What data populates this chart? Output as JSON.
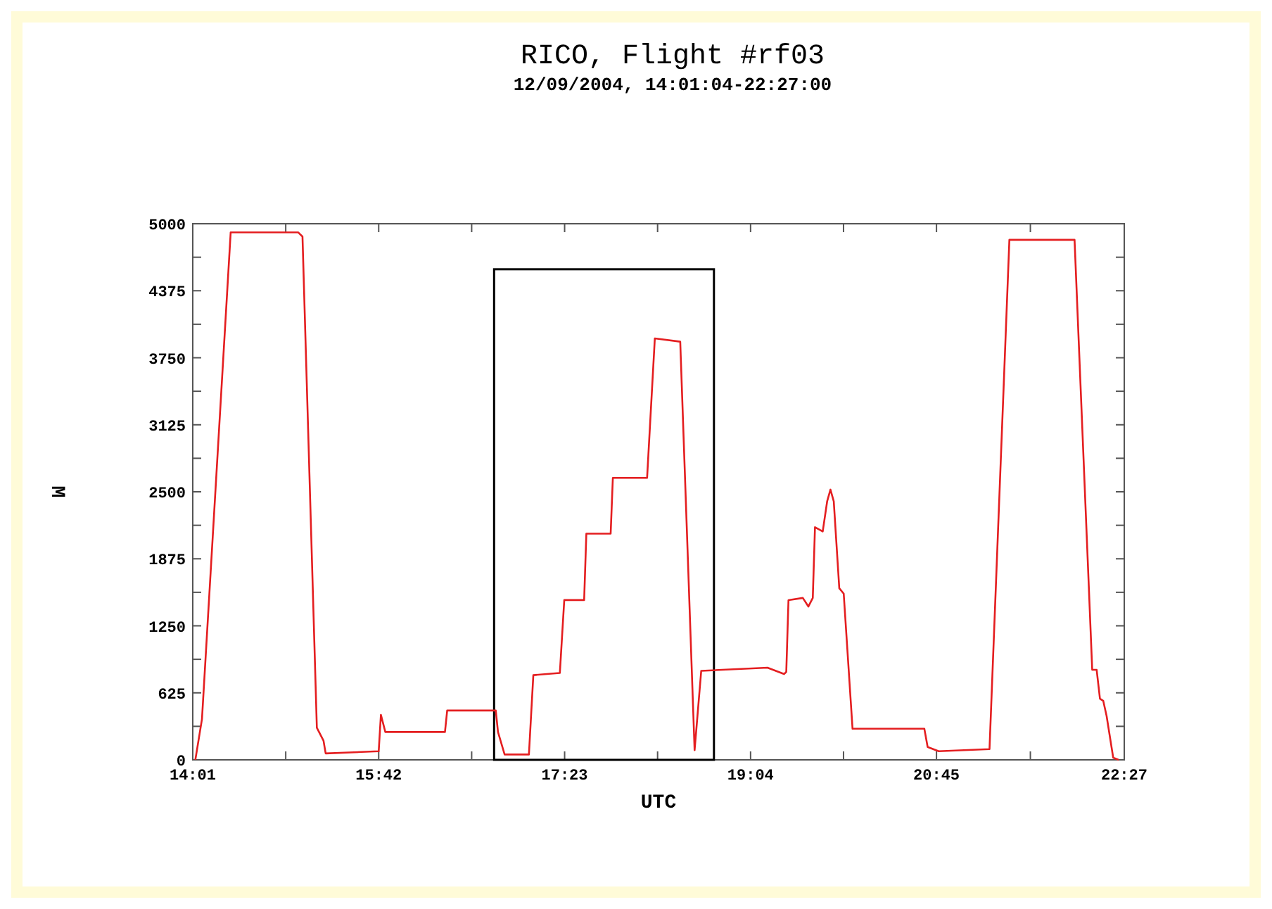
{
  "chart_data": {
    "type": "line",
    "title": "RICO, Flight #rf03",
    "subtitle": "12/09/2004, 14:01:04-22:27:00",
    "xlabel": "UTC",
    "ylabel": "M",
    "x": [
      14.04,
      14.1,
      14.36,
      14.97,
      15.01,
      15.14,
      15.2,
      15.22,
      15.7,
      15.72,
      15.76,
      16.3,
      16.32,
      16.56,
      16.76,
      16.78,
      16.84,
      17.06,
      17.1,
      17.34,
      17.38,
      17.56,
      17.58,
      17.8,
      17.82,
      18.13,
      18.2,
      18.43,
      18.56,
      18.62,
      19.22,
      19.37,
      19.39,
      19.41,
      19.54,
      19.59,
      19.63,
      19.65,
      19.72,
      19.76,
      19.79,
      19.82,
      19.87,
      19.91,
      19.99,
      20.64,
      20.67,
      20.77,
      21.23,
      21.41,
      22.0,
      22.16,
      22.2,
      22.23,
      22.26,
      22.29,
      22.35,
      22.4
    ],
    "series": [
      {
        "color": "#e41e20",
        "values": [
          0,
          380,
          4920,
          4920,
          4880,
          300,
          180,
          60,
          80,
          420,
          260,
          260,
          460,
          460,
          460,
          260,
          50,
          50,
          790,
          810,
          1490,
          1490,
          2110,
          2110,
          2630,
          2630,
          3930,
          3900,
          90,
          830,
          860,
          800,
          820,
          1490,
          1510,
          1430,
          1510,
          2170,
          2130,
          2410,
          2520,
          2410,
          1600,
          1550,
          290,
          290,
          120,
          80,
          100,
          4850,
          4850,
          840,
          840,
          570,
          550,
          410,
          20,
          0
        ]
      }
    ],
    "xlim": [
      14.0167,
      22.45
    ],
    "xticks": [
      {
        "value": 14.0167,
        "label": "14:01"
      },
      {
        "value": 14.8583,
        "label": null
      },
      {
        "value": 15.7,
        "label": "15:42"
      },
      {
        "value": 16.5417,
        "label": null
      },
      {
        "value": 17.3833,
        "label": "17:23"
      },
      {
        "value": 18.225,
        "label": null
      },
      {
        "value": 19.0667,
        "label": "19:04"
      },
      {
        "value": 19.9083,
        "label": null
      },
      {
        "value": 20.75,
        "label": "20:45"
      },
      {
        "value": 21.6,
        "label": null
      },
      {
        "value": 22.45,
        "label": "22:27"
      }
    ],
    "ylim": [
      0,
      5000
    ],
    "yticks": [
      0,
      {
        "value": 312.5,
        "label": null
      },
      625,
      {
        "value": 937.5,
        "label": null
      },
      1250,
      {
        "value": 1562.5,
        "label": null
      },
      1875,
      {
        "value": 2187.5,
        "label": null
      },
      2500,
      {
        "value": 2812.5,
        "label": null
      },
      3125,
      {
        "value": 3437.5,
        "label": null
      },
      3750,
      {
        "value": 4062.5,
        "label": null
      },
      4375,
      {
        "value": 4687.5,
        "label": null
      },
      5000
    ],
    "grid": false,
    "line_style": "solid",
    "marker": "none"
  }
}
